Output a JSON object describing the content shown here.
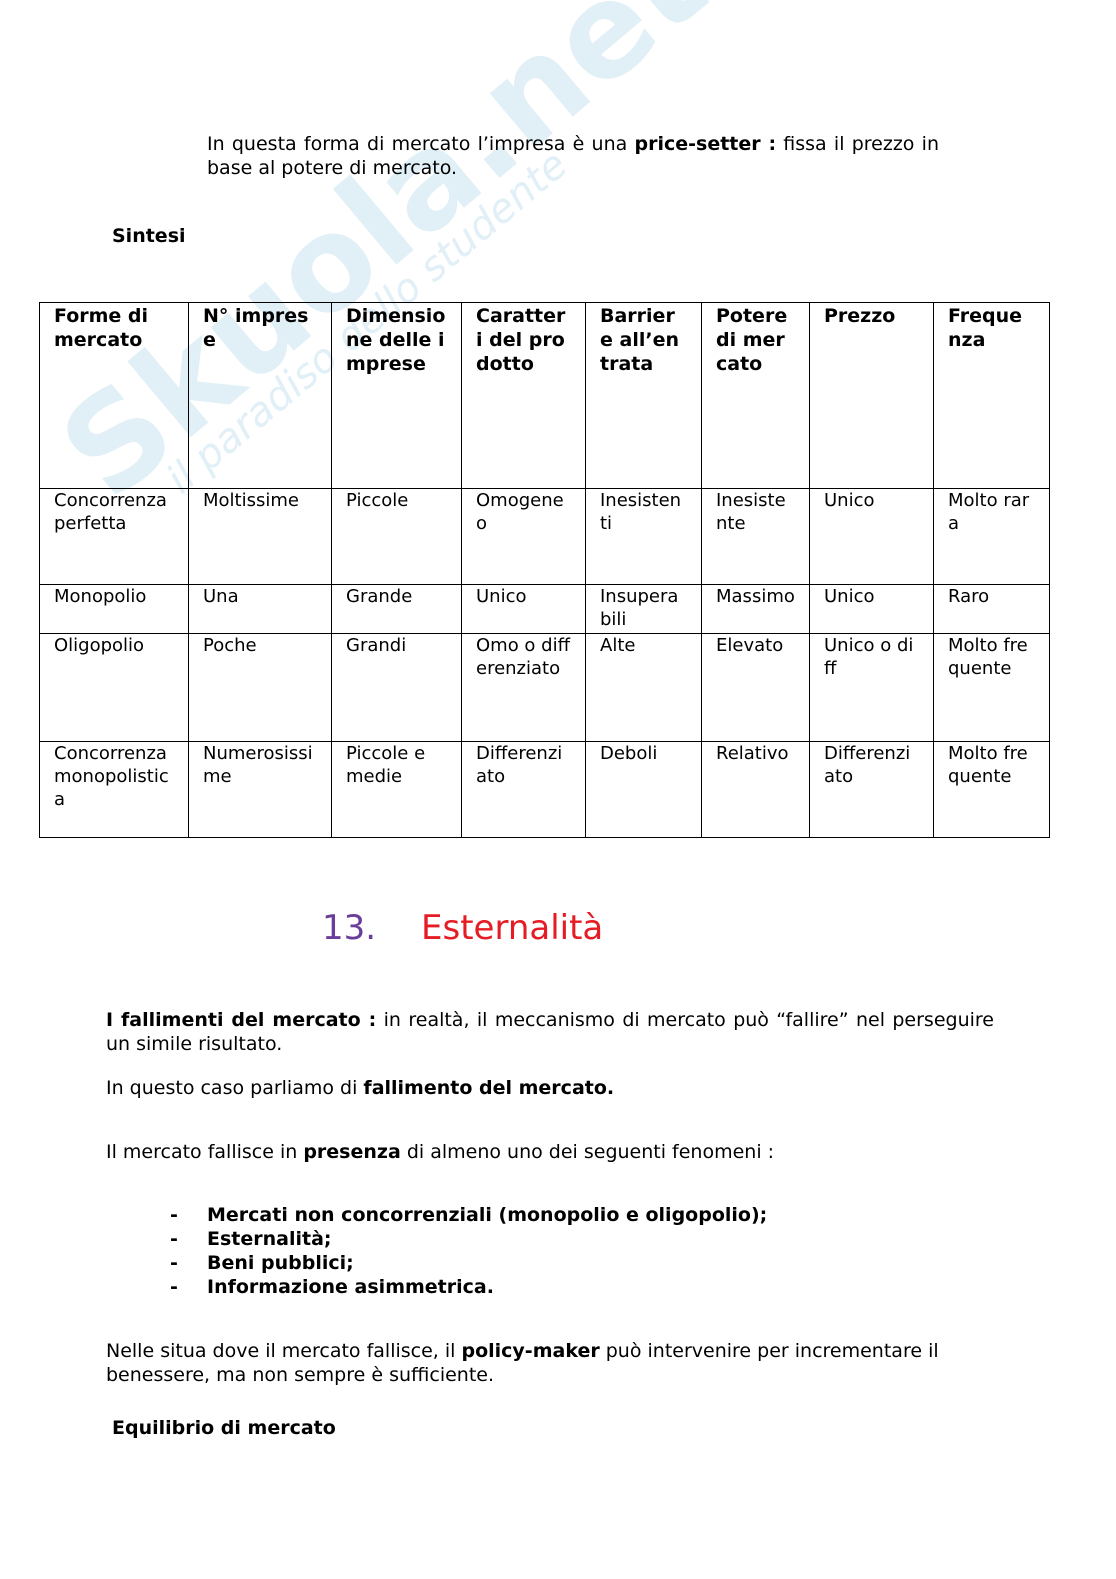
{
  "watermark": {
    "logo": "Skuola.net",
    "tagline": "il paradiso dello studente"
  },
  "intro": {
    "pre": "In questa forma di mercato l’impresa è una ",
    "bold": "price-setter :",
    "post": " fissa il prezzo in base al potere di mercato."
  },
  "sintesi_heading": "Sintesi",
  "table": {
    "headers": [
      "Forme di mercato",
      "N° imprese",
      "Dimensione delle imprese",
      "Caratteri del prodotto",
      "Barriere all’entrata",
      "Potere di mercato",
      "Prezzo",
      "Frequenza"
    ],
    "rows": [
      [
        "Concorrenza perfetta",
        "Moltissime",
        "Piccole",
        "Omogeneo",
        "Inesistenti",
        "Inesistente",
        "Unico",
        "Molto rara"
      ],
      [
        "Monopolio",
        "Una",
        "Grande",
        "Unico",
        "Insuperabili",
        "Massimo",
        "Unico",
        "Raro"
      ],
      [
        "Oligopolio",
        "Poche",
        "Grandi",
        "Omo o differenziato",
        "Alte",
        "Elevato",
        "Unico o diff",
        "Molto frequente"
      ],
      [
        "Concorrenza monopolistica",
        "Numerosissime",
        "Piccole e medie",
        "Differenziato",
        "Deboli",
        "Relativo",
        "Differenziato",
        "Molto frequente"
      ]
    ]
  },
  "section": {
    "number": "13.",
    "title": "Esternalità"
  },
  "p_fallimenti": {
    "bold": "I fallimenti del mercato :",
    "text": " in realtà, il meccanismo di mercato può “fallire” nel perseguire un simile risultato."
  },
  "p_caso": {
    "text": "In questo caso parliamo di ",
    "bold": "fallimento del mercato."
  },
  "p_fallisce": {
    "pre": "Il mercato fallisce in ",
    "bold": "presenza",
    "post": " di almeno uno dei seguenti fenomeni :"
  },
  "list": [
    "Mercati non concorrenziali (monopolio e oligopolio);",
    "Esternalità;",
    "Beni pubblici;",
    "Informazione asimmetrica."
  ],
  "list_bullet": "-",
  "p_policy": {
    "pre": "Nelle situa dove il mercato fallisce, il ",
    "bold": "policy-maker",
    "post": " può intervenire per incrementare il benessere, ma non sempre è sufficiente."
  },
  "equilibrio_heading": "Equilibrio di mercato",
  "colors": {
    "section_number": "#6a3d9a",
    "section_title": "#e51c23"
  }
}
